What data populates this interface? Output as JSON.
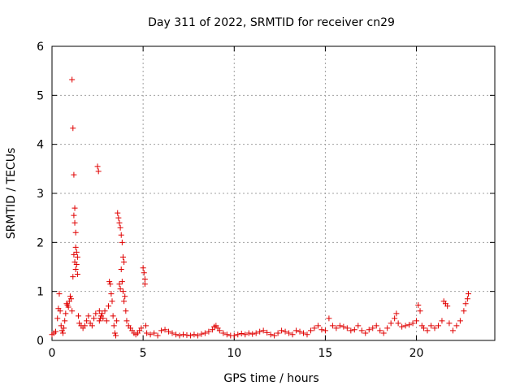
{
  "chart_data": {
    "type": "scatter",
    "title": "Day 311 of 2022, SRMTID for receiver cn29",
    "xlabel": "GPS time / hours",
    "ylabel": "SRMTID / TECUs",
    "xlim": [
      0,
      24.3
    ],
    "ylim": [
      0,
      6
    ],
    "xticks": [
      0,
      5,
      10,
      15,
      20
    ],
    "yticks": [
      0,
      1,
      2,
      3,
      4,
      5,
      6
    ],
    "grid": true,
    "marker": "+",
    "marker_color": "#e00000",
    "series": [
      {
        "name": "SRMTID",
        "x": [
          0.0,
          0.1,
          0.2,
          0.3,
          0.35,
          0.4,
          0.45,
          0.5,
          0.55,
          0.6,
          0.65,
          0.7,
          0.75,
          0.8,
          0.85,
          0.9,
          0.95,
          1.0,
          1.05,
          1.1,
          1.1,
          1.15,
          1.15,
          1.2,
          1.2,
          1.2,
          1.25,
          1.25,
          1.25,
          1.3,
          1.3,
          1.3,
          1.35,
          1.35,
          1.4,
          1.4,
          1.45,
          1.5,
          1.6,
          1.7,
          1.8,
          1.9,
          2.0,
          2.1,
          2.2,
          2.3,
          2.4,
          2.5,
          2.55,
          2.6,
          2.6,
          2.65,
          2.7,
          2.75,
          2.8,
          2.9,
          3.0,
          3.1,
          3.15,
          3.2,
          3.25,
          3.3,
          3.35,
          3.4,
          3.45,
          3.5,
          3.55,
          3.6,
          3.65,
          3.7,
          3.7,
          3.75,
          3.75,
          3.8,
          3.8,
          3.85,
          3.85,
          3.9,
          3.9,
          3.95,
          3.95,
          4.0,
          4.05,
          4.1,
          4.2,
          4.3,
          4.4,
          4.5,
          4.6,
          4.7,
          4.8,
          4.9,
          5.0,
          5.05,
          5.1,
          5.1,
          5.15,
          5.2,
          5.4,
          5.6,
          5.8,
          6.0,
          6.2,
          6.4,
          6.6,
          6.8,
          7.0,
          7.2,
          7.4,
          7.6,
          7.8,
          8.0,
          8.2,
          8.4,
          8.6,
          8.8,
          8.9,
          9.0,
          9.1,
          9.2,
          9.4,
          9.6,
          9.8,
          10.0,
          10.2,
          10.4,
          10.6,
          10.8,
          11.0,
          11.2,
          11.4,
          11.6,
          11.8,
          12.0,
          12.2,
          12.4,
          12.6,
          12.8,
          13.0,
          13.2,
          13.4,
          13.6,
          13.8,
          14.0,
          14.2,
          14.4,
          14.6,
          14.8,
          15.0,
          15.2,
          15.4,
          15.6,
          15.8,
          16.0,
          16.2,
          16.4,
          16.6,
          16.8,
          17.0,
          17.2,
          17.4,
          17.6,
          17.8,
          18.0,
          18.2,
          18.4,
          18.6,
          18.8,
          18.9,
          19.0,
          19.2,
          19.4,
          19.6,
          19.8,
          20.0,
          20.1,
          20.2,
          20.3,
          20.4,
          20.6,
          20.8,
          21.0,
          21.2,
          21.4,
          21.5,
          21.6,
          21.7,
          21.8,
          22.0,
          22.2,
          22.4,
          22.6,
          22.7,
          22.8,
          22.85
        ],
        "y": [
          0.12,
          0.15,
          0.18,
          0.45,
          0.65,
          0.95,
          0.6,
          0.3,
          0.2,
          0.15,
          0.25,
          0.4,
          0.55,
          0.75,
          0.72,
          0.68,
          0.8,
          0.9,
          0.85,
          5.32,
          0.6,
          4.33,
          1.3,
          3.38,
          2.55,
          1.75,
          2.7,
          2.4,
          1.6,
          2.2,
          1.9,
          1.45,
          1.8,
          1.55,
          1.7,
          1.35,
          0.5,
          0.35,
          0.3,
          0.25,
          0.3,
          0.4,
          0.5,
          0.35,
          0.3,
          0.45,
          0.55,
          3.55,
          3.45,
          0.6,
          0.4,
          0.45,
          0.5,
          0.55,
          0.45,
          0.6,
          0.4,
          0.7,
          1.2,
          1.15,
          0.95,
          0.8,
          0.5,
          0.3,
          0.15,
          0.1,
          0.4,
          2.6,
          2.5,
          2.4,
          1.15,
          2.3,
          1.05,
          2.15,
          1.45,
          2.0,
          1.2,
          1.7,
          1.0,
          1.6,
          0.8,
          0.9,
          0.6,
          0.4,
          0.3,
          0.25,
          0.2,
          0.15,
          0.12,
          0.15,
          0.2,
          0.25,
          1.48,
          1.38,
          1.25,
          1.15,
          0.3,
          0.15,
          0.12,
          0.15,
          0.1,
          0.2,
          0.22,
          0.18,
          0.15,
          0.12,
          0.1,
          0.12,
          0.11,
          0.1,
          0.12,
          0.1,
          0.13,
          0.15,
          0.18,
          0.22,
          0.28,
          0.3,
          0.25,
          0.2,
          0.15,
          0.12,
          0.1,
          0.1,
          0.12,
          0.14,
          0.12,
          0.15,
          0.13,
          0.15,
          0.18,
          0.2,
          0.16,
          0.12,
          0.1,
          0.15,
          0.2,
          0.18,
          0.15,
          0.12,
          0.2,
          0.18,
          0.15,
          0.12,
          0.2,
          0.25,
          0.3,
          0.22,
          0.2,
          0.45,
          0.3,
          0.25,
          0.3,
          0.28,
          0.25,
          0.2,
          0.22,
          0.3,
          0.2,
          0.15,
          0.22,
          0.25,
          0.3,
          0.2,
          0.15,
          0.25,
          0.35,
          0.45,
          0.55,
          0.35,
          0.28,
          0.3,
          0.32,
          0.35,
          0.4,
          0.72,
          0.6,
          0.3,
          0.25,
          0.2,
          0.3,
          0.25,
          0.3,
          0.4,
          0.8,
          0.75,
          0.7,
          0.35,
          0.2,
          0.3,
          0.4,
          0.6,
          0.75,
          0.85,
          0.95
        ]
      }
    ]
  }
}
